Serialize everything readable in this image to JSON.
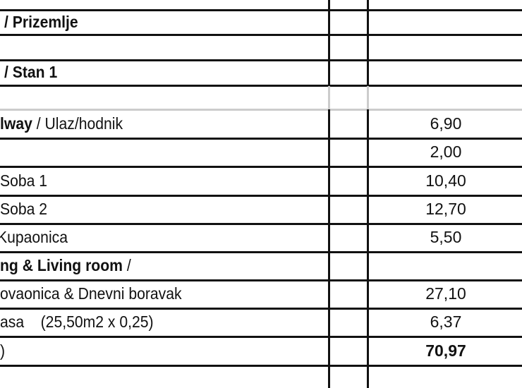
{
  "rows": [
    {
      "label_bold": "/ Prizemlje",
      "label": "",
      "value": ""
    },
    {
      "label_bold": "",
      "label": "",
      "value": ""
    },
    {
      "label_bold": "/ Stan 1",
      "label": "",
      "value": ""
    },
    {
      "label_bold": "",
      "label": "",
      "value": ""
    },
    {
      "label_bold": "lway",
      "label": " / Ulaz/hodnik",
      "value": "6,90"
    },
    {
      "label_bold": "",
      "label": "",
      "value": "2,00"
    },
    {
      "label_bold": "",
      "label": "Soba 1",
      "value": "10,40"
    },
    {
      "label_bold": "",
      "label": "Soba 2",
      "value": "12,70"
    },
    {
      "label_bold": "",
      "label": "Kupaonica",
      "value": "5,50"
    },
    {
      "label_bold": "ng & Living room",
      "label": " /",
      "value": ""
    },
    {
      "label_bold": "",
      "label": "ovaonica & Dnevni boravak",
      "value": "27,10"
    },
    {
      "label_bold": "",
      "label": "asa    (25,50m2 x 0,25)",
      "value": "6,37"
    },
    {
      "label_bold": "",
      "label": ")",
      "value": "70,97",
      "value_bold": true
    }
  ]
}
